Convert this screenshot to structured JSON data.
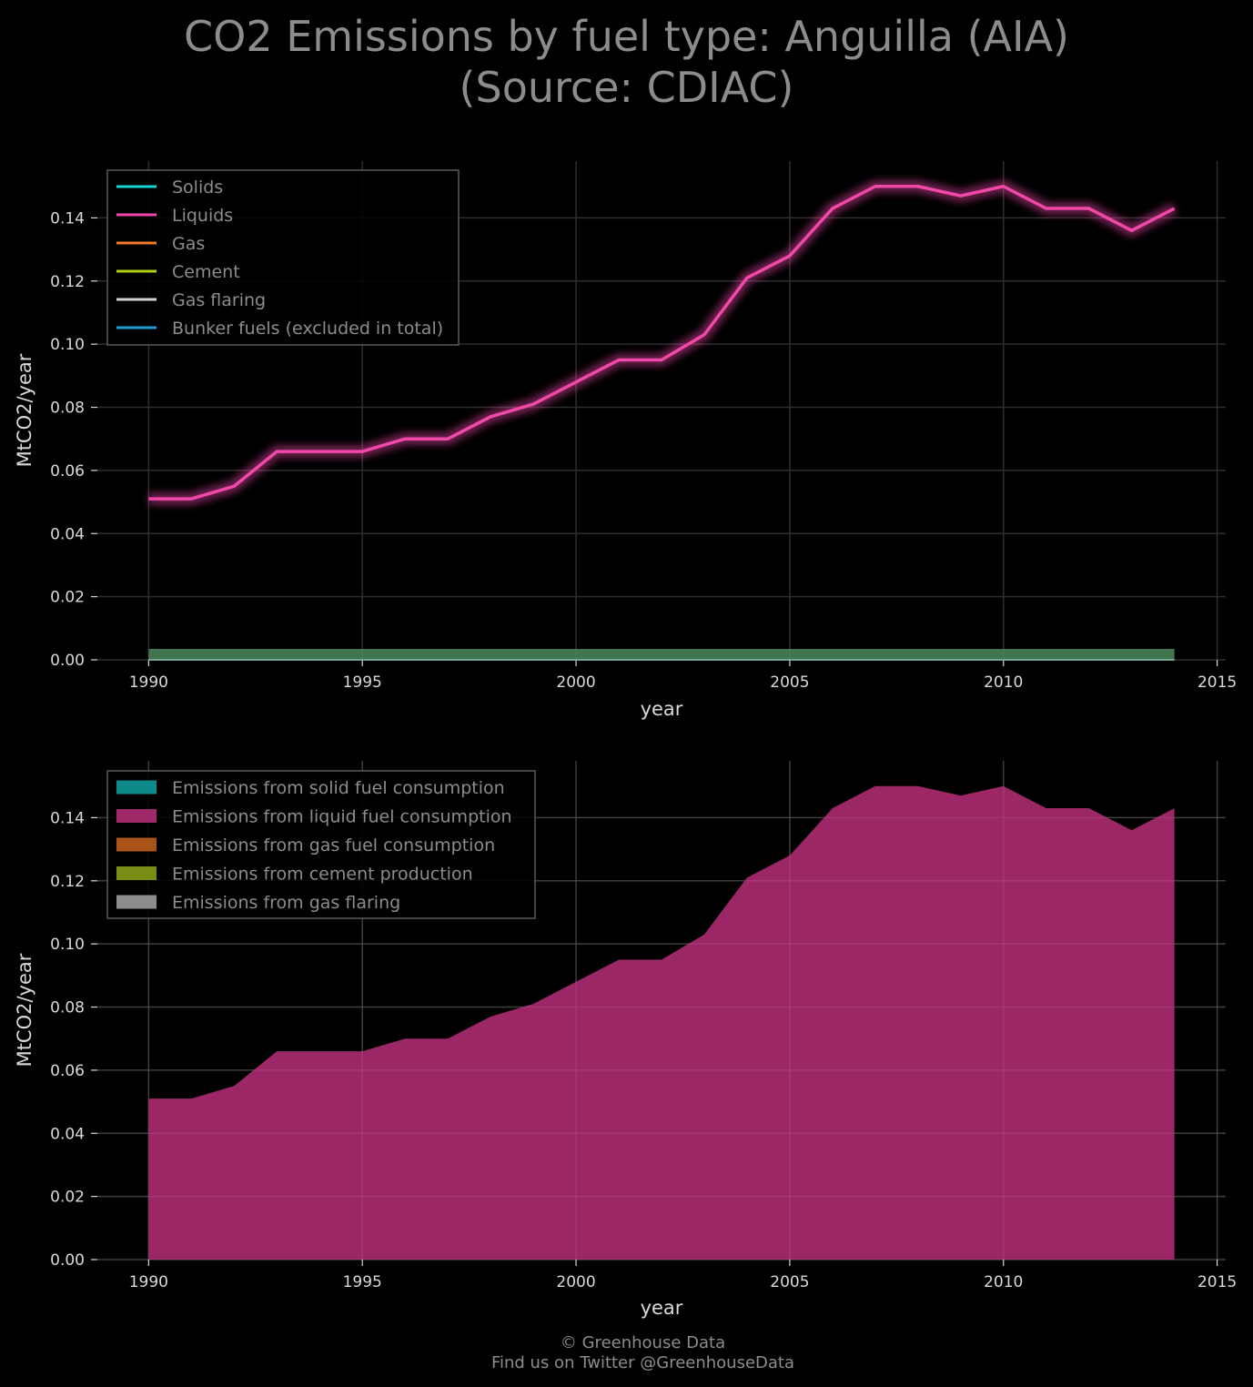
{
  "title": {
    "line1": "CO2 Emissions by fuel type: Anguilla (AIA)",
    "line2": "(Source: CDIAC)"
  },
  "footer": {
    "line1": "© Greenhouse Data",
    "line2": "Find us on Twitter @GreenhouseData"
  },
  "chart_data": [
    {
      "type": "line",
      "xlabel": "year",
      "ylabel": "MtCO2/year",
      "xlim": [
        1988.8,
        2015.2
      ],
      "ylim": [
        0.0,
        0.158
      ],
      "xticks": [
        1990,
        1995,
        2000,
        2005,
        2010,
        2015
      ],
      "yticks": [
        0.0,
        0.02,
        0.04,
        0.06,
        0.08,
        0.1,
        0.12,
        0.14
      ],
      "ytick_labels": [
        "0.00",
        "0.02",
        "0.04",
        "0.06",
        "0.08",
        "0.10",
        "0.12",
        "0.14"
      ],
      "grid": true,
      "legend_position": "top-left",
      "x": [
        1990,
        1991,
        1992,
        1993,
        1994,
        1995,
        1996,
        1997,
        1998,
        1999,
        2000,
        2001,
        2002,
        2003,
        2004,
        2005,
        2006,
        2007,
        2008,
        2009,
        2010,
        2011,
        2012,
        2013,
        2014
      ],
      "series": [
        {
          "name": "Solids",
          "color": "#17d3d3",
          "values": [
            0,
            0,
            0,
            0,
            0,
            0,
            0,
            0,
            0,
            0,
            0,
            0,
            0,
            0,
            0,
            0,
            0,
            0,
            0,
            0,
            0,
            0,
            0,
            0,
            0
          ]
        },
        {
          "name": "Liquids",
          "color": "#f048a8",
          "values": [
            0.051,
            0.051,
            0.055,
            0.066,
            0.066,
            0.066,
            0.07,
            0.07,
            0.077,
            0.081,
            0.088,
            0.095,
            0.095,
            0.103,
            0.121,
            0.128,
            0.143,
            0.15,
            0.15,
            0.147,
            0.15,
            0.143,
            0.143,
            0.136,
            0.143
          ]
        },
        {
          "name": "Gas",
          "color": "#f07a2c",
          "values": [
            0,
            0,
            0,
            0,
            0,
            0,
            0,
            0,
            0,
            0,
            0,
            0,
            0,
            0,
            0,
            0,
            0,
            0,
            0,
            0,
            0,
            0,
            0,
            0,
            0
          ]
        },
        {
          "name": "Cement",
          "color": "#b5cc18",
          "values": [
            0,
            0,
            0,
            0,
            0,
            0,
            0,
            0,
            0,
            0,
            0,
            0,
            0,
            0,
            0,
            0,
            0,
            0,
            0,
            0,
            0,
            0,
            0,
            0,
            0
          ]
        },
        {
          "name": "Gas flaring",
          "color": "#d3d3d3",
          "values": [
            0,
            0,
            0,
            0,
            0,
            0,
            0,
            0,
            0,
            0,
            0,
            0,
            0,
            0,
            0,
            0,
            0,
            0,
            0,
            0,
            0,
            0,
            0,
            0,
            0
          ]
        },
        {
          "name": "Bunker fuels (excluded in total)",
          "color": "#1f9ad8",
          "values": [
            0,
            0,
            0,
            0,
            0,
            0,
            0,
            0,
            0,
            0,
            0,
            0,
            0,
            0,
            0,
            0,
            0,
            0,
            0,
            0,
            0,
            0,
            0,
            0,
            0
          ]
        }
      ]
    },
    {
      "type": "area",
      "xlabel": "year",
      "ylabel": "MtCO2/year",
      "xlim": [
        1988.8,
        2015.2
      ],
      "ylim": [
        0.0,
        0.158
      ],
      "xticks": [
        1990,
        1995,
        2000,
        2005,
        2010,
        2015
      ],
      "yticks": [
        0.0,
        0.02,
        0.04,
        0.06,
        0.08,
        0.1,
        0.12,
        0.14
      ],
      "ytick_labels": [
        "0.00",
        "0.02",
        "0.04",
        "0.06",
        "0.08",
        "0.10",
        "0.12",
        "0.14"
      ],
      "grid": true,
      "legend_position": "top-left",
      "x": [
        1990,
        1991,
        1992,
        1993,
        1994,
        1995,
        1996,
        1997,
        1998,
        1999,
        2000,
        2001,
        2002,
        2003,
        2004,
        2005,
        2006,
        2007,
        2008,
        2009,
        2010,
        2011,
        2012,
        2013,
        2014
      ],
      "series": [
        {
          "name": "Emissions from solid fuel consumption",
          "color": "#0f8a8a",
          "values": [
            0,
            0,
            0,
            0,
            0,
            0,
            0,
            0,
            0,
            0,
            0,
            0,
            0,
            0,
            0,
            0,
            0,
            0,
            0,
            0,
            0,
            0,
            0,
            0,
            0
          ]
        },
        {
          "name": "Emissions from liquid fuel consumption",
          "color": "#9e2868",
          "values": [
            0.051,
            0.051,
            0.055,
            0.066,
            0.066,
            0.066,
            0.07,
            0.07,
            0.077,
            0.081,
            0.088,
            0.095,
            0.095,
            0.103,
            0.121,
            0.128,
            0.143,
            0.15,
            0.15,
            0.147,
            0.15,
            0.143,
            0.143,
            0.136,
            0.143
          ]
        },
        {
          "name": "Emissions from gas fuel consumption",
          "color": "#a85418",
          "values": [
            0,
            0,
            0,
            0,
            0,
            0,
            0,
            0,
            0,
            0,
            0,
            0,
            0,
            0,
            0,
            0,
            0,
            0,
            0,
            0,
            0,
            0,
            0,
            0,
            0
          ]
        },
        {
          "name": "Emissions from cement production",
          "color": "#7a8c14",
          "values": [
            0,
            0,
            0,
            0,
            0,
            0,
            0,
            0,
            0,
            0,
            0,
            0,
            0,
            0,
            0,
            0,
            0,
            0,
            0,
            0,
            0,
            0,
            0,
            0,
            0
          ]
        },
        {
          "name": "Emissions from gas flaring",
          "color": "#8c8c8c",
          "values": [
            0,
            0,
            0,
            0,
            0,
            0,
            0,
            0,
            0,
            0,
            0,
            0,
            0,
            0,
            0,
            0,
            0,
            0,
            0,
            0,
            0,
            0,
            0,
            0,
            0
          ]
        }
      ]
    }
  ]
}
